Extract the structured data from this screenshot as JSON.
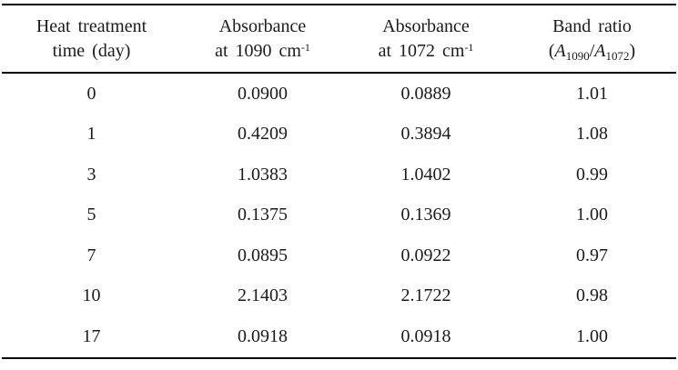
{
  "styles": {
    "background": "#ffffff",
    "text_color": "#1b1b1b",
    "rule_color": "#000000"
  },
  "chart_data": {
    "type": "table",
    "header": {
      "col1": {
        "line1": "Heat treatment",
        "line2": "time (day)"
      },
      "col2": {
        "line1": "Absorbance",
        "line2_base": "at 1090 cm",
        "line2_sup": "-1"
      },
      "col3": {
        "line1": "Absorbance",
        "line2_base": "at 1072 cm",
        "line2_sup": "-1"
      },
      "col4": {
        "line1": "Band ratio",
        "paren_open": "(",
        "symbol1": "A",
        "sub1": "1090",
        "divider": "/",
        "symbol2": "A",
        "sub2": "1072",
        "paren_close": ")"
      }
    },
    "rows": [
      {
        "day": "0",
        "a1090": "0.0900",
        "a1072": "0.0889",
        "ratio": "1.01"
      },
      {
        "day": "1",
        "a1090": "0.4209",
        "a1072": "0.3894",
        "ratio": "1.08"
      },
      {
        "day": "3",
        "a1090": "1.0383",
        "a1072": "1.0402",
        "ratio": "0.99"
      },
      {
        "day": "5",
        "a1090": "0.1375",
        "a1072": "0.1369",
        "ratio": "1.00"
      },
      {
        "day": "7",
        "a1090": "0.0895",
        "a1072": "0.0922",
        "ratio": "0.97"
      },
      {
        "day": "10",
        "a1090": "2.1403",
        "a1072": "2.1722",
        "ratio": "0.98"
      },
      {
        "day": "17",
        "a1090": "0.0918",
        "a1072": "0.0918",
        "ratio": "1.00"
      }
    ]
  }
}
